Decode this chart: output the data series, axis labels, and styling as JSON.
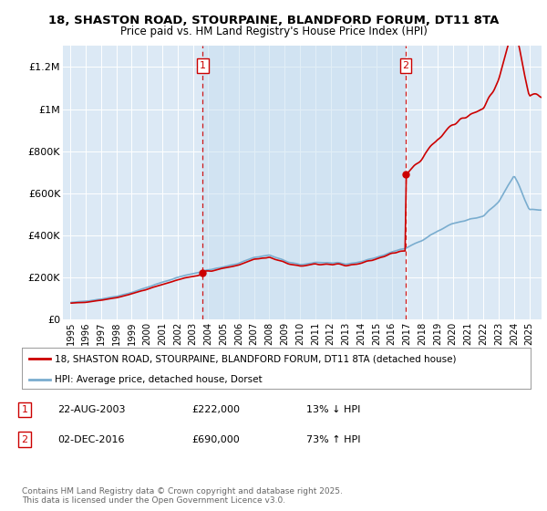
{
  "title_line1": "18, SHASTON ROAD, STOURPAINE, BLANDFORD FORUM, DT11 8TA",
  "title_line2": "Price paid vs. HM Land Registry's House Price Index (HPI)",
  "bg_color": "#dce9f5",
  "plot_bg_color": "#dce9f5",
  "legend_label_red": "18, SHASTON ROAD, STOURPAINE, BLANDFORD FORUM, DT11 8TA (detached house)",
  "legend_label_blue": "HPI: Average price, detached house, Dorset",
  "footer": "Contains HM Land Registry data © Crown copyright and database right 2025.\nThis data is licensed under the Open Government Licence v3.0.",
  "purchase1_label": "1",
  "purchase1_date": "22-AUG-2003",
  "purchase1_price": "£222,000",
  "purchase1_hpi": "13% ↓ HPI",
  "purchase1_year": 2003.64,
  "purchase1_value": 222000,
  "purchase2_label": "2",
  "purchase2_date": "02-DEC-2016",
  "purchase2_price": "£690,000",
  "purchase2_hpi": "73% ↑ HPI",
  "purchase2_year": 2016.92,
  "purchase2_value": 690000,
  "red_color": "#cc0000",
  "blue_color": "#7aadcf",
  "vline_color": "#cc0000",
  "shade_color": "#d0e4f0",
  "grid_color": "#ffffff",
  "ylim": [
    0,
    1300000
  ],
  "yticks": [
    0,
    200000,
    400000,
    600000,
    800000,
    1000000,
    1200000
  ],
  "ytick_labels": [
    "£0",
    "£200K",
    "£400K",
    "£600K",
    "£800K",
    "£1M",
    "£1.2M"
  ],
  "xlim_left": 1994.5,
  "xlim_right": 2025.8
}
